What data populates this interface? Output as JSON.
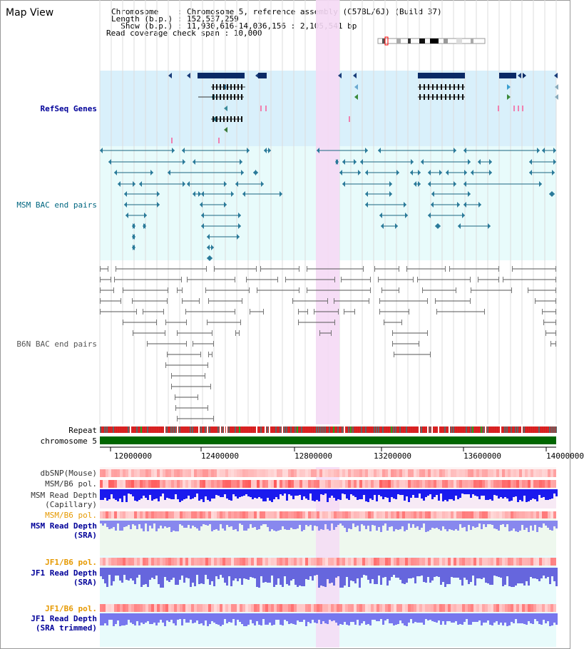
{
  "page": {
    "title": "Map View"
  },
  "info": {
    "chromosome_line": "Chromosome    : Chromosome 5, reference assembly (C57BL/6J) (Build 37)",
    "length_line": "Length (b.p.) : 152,537,259",
    "show_line": "  Show (b.p.) : 11,930,616-14,036,156 : 2,105,541 bp",
    "coverage_line": "Read coverage check span : 10,000"
  },
  "tracks": {
    "refseq": "RefSeq Genes",
    "msm_bac": "MSM BAC end pairs",
    "b6n_bac": "B6N BAC end pairs",
    "repeat": "Repeat",
    "chromosome": "chromosome 5",
    "dbsnp": "dbSNP(Mouse)",
    "msm_b6_pol_1": "MSM/B6 pol.",
    "msm_read_depth_cap_1": "MSM Read Depth",
    "msm_read_depth_cap_2": "(Capillary)",
    "msm_b6_pol_2": "MSM/B6 pol.",
    "msm_read_depth_sra_1": "MSM Read Depth",
    "msm_read_depth_sra_2": "(SRA)",
    "jf1_b6_pol_1": "JF1/B6 pol.",
    "jf1_read_depth_sra_1": "JF1 Read Depth",
    "jf1_read_depth_sra_2": "(SRA)",
    "jf1_b6_pol_2": "JF1/B6 pol.",
    "jf1_read_depth_trim_1": "JF1 Read Depth",
    "jf1_read_depth_trim_2": "(SRA trimmed)"
  },
  "axis": {
    "ticks": [
      "12000000",
      "12400000",
      "12800000",
      "13200000",
      "13600000",
      "14000000"
    ]
  },
  "colors": {
    "refseq_bg": "#d9f0fb",
    "msm_bg": "#e8fbfb",
    "highlight": "#f5d9f5",
    "refseq_label": "#000099",
    "msm_label": "#006680",
    "pol_label": "#e69900",
    "depth_label": "#000099"
  }
}
